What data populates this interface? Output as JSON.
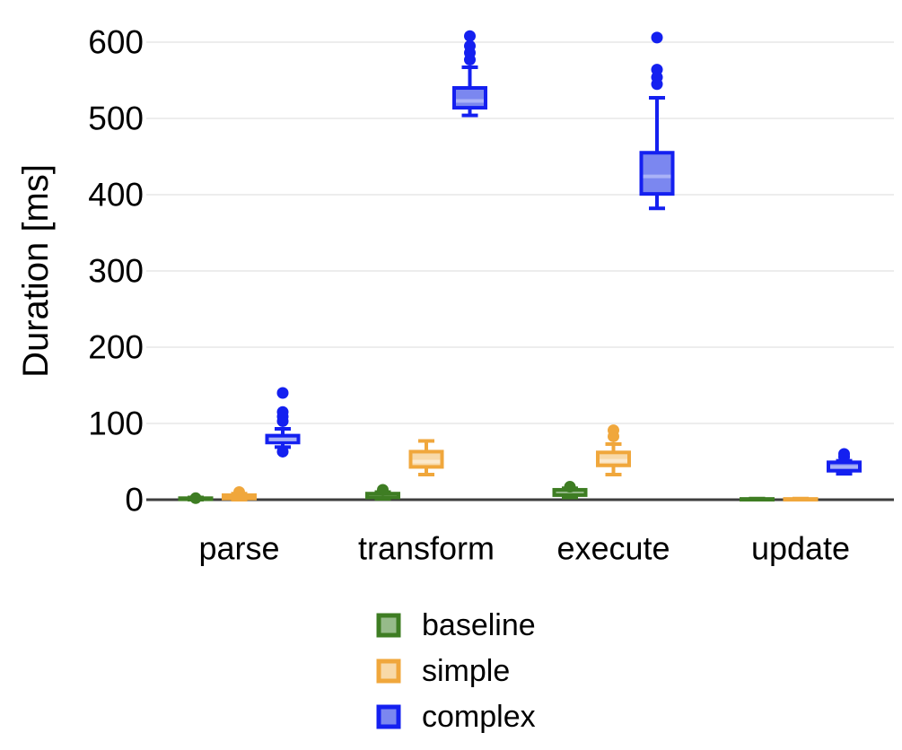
{
  "page": {
    "background": "#ffffff",
    "text_color": "#000000",
    "axis_color": "#3d3d3d",
    "grid_color": "#ededed"
  },
  "chart_data": {
    "type": "boxplot",
    "title": "",
    "xlabel": "",
    "ylabel": "Duration [ms]",
    "categories": [
      "parse",
      "transform",
      "execute",
      "update"
    ],
    "yticks": [
      0,
      100,
      200,
      300,
      400,
      500,
      600
    ],
    "ylim": [
      0,
      620
    ],
    "grid": "horizontal-only",
    "legend_position": "bottom-center",
    "series": [
      {
        "name": "baseline",
        "border_color": "#3e7d23",
        "fill_color": "#96bb8a",
        "median_color": "#bcd4ae",
        "boxes": [
          {
            "category": "parse",
            "low": 0,
            "q1": 0.5,
            "median": 1,
            "q3": 2,
            "high": 3,
            "outliers": [
              2
            ]
          },
          {
            "category": "transform",
            "low": 1,
            "q1": 3,
            "median": 5,
            "q3": 8,
            "high": 10,
            "outliers": [
              13
            ]
          },
          {
            "category": "execute",
            "low": 3,
            "q1": 6,
            "median": 9,
            "q3": 13,
            "high": 15,
            "outliers": [
              17
            ]
          },
          {
            "category": "update",
            "low": 0,
            "q1": 0,
            "median": 0.5,
            "q3": 1,
            "high": 1.5,
            "outliers": []
          }
        ]
      },
      {
        "name": "simple",
        "border_color": "#f0a73c",
        "fill_color": "#f8d9a8",
        "median_color": "#fbe9cd",
        "boxes": [
          {
            "category": "parse",
            "low": 0,
            "q1": 1.5,
            "median": 3.5,
            "q3": 6,
            "high": 8,
            "outliers": [
              10
            ]
          },
          {
            "category": "transform",
            "low": 33,
            "q1": 43,
            "median": 50,
            "q3": 63,
            "high": 77,
            "outliers": []
          },
          {
            "category": "execute",
            "low": 33,
            "q1": 45,
            "median": 51,
            "q3": 62,
            "high": 73,
            "outliers": [
              83,
              91
            ]
          },
          {
            "category": "update",
            "low": 0,
            "q1": 0,
            "median": 0.5,
            "q3": 1,
            "high": 1.5,
            "outliers": []
          }
        ]
      },
      {
        "name": "complex",
        "border_color": "#1420f0",
        "fill_color": "#7b87f0",
        "median_color": "#aab2f7",
        "boxes": [
          {
            "category": "parse",
            "low": 69,
            "q1": 75,
            "median": 79,
            "q3": 84,
            "high": 93,
            "outliers": [
              63,
              103,
              109,
              115,
              140
            ]
          },
          {
            "category": "transform",
            "low": 504,
            "q1": 514,
            "median": 523,
            "q3": 540,
            "high": 567,
            "outliers": [
              577,
              586,
              595,
              608
            ]
          },
          {
            "category": "execute",
            "low": 382,
            "q1": 401,
            "median": 424,
            "q3": 455,
            "high": 527,
            "outliers": [
              545,
              554,
              564,
              606
            ]
          },
          {
            "category": "update",
            "low": 34,
            "q1": 38,
            "median": 43,
            "q3": 49,
            "high": 51,
            "outliers": [
              56,
              60
            ]
          }
        ]
      }
    ]
  }
}
